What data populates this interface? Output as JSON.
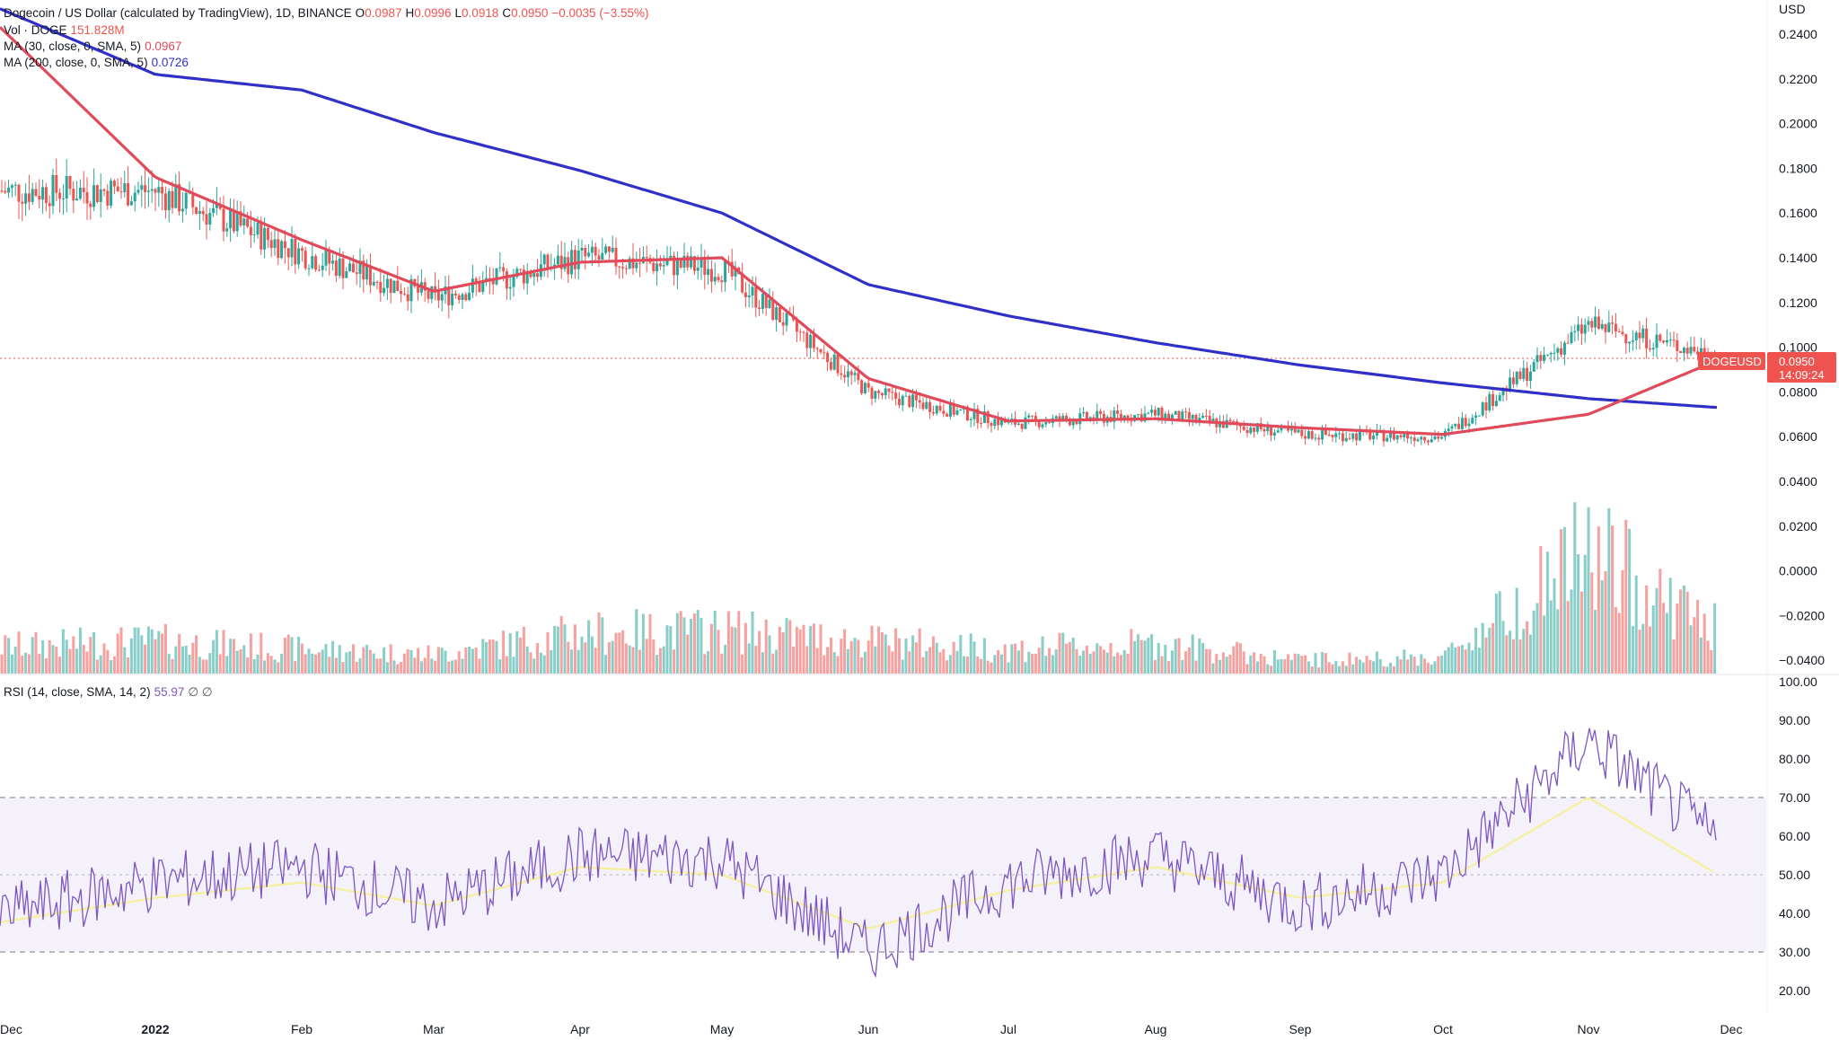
{
  "legend": {
    "main": "Dogecoin / US Dollar (calculated by TradingView), 1D, BINANCE",
    "o_label": "O",
    "o_value": "0.0987",
    "h_label": "H",
    "h_value": "0.0996",
    "l_label": "L",
    "l_value": "0.0918",
    "c_label": "C",
    "c_value": "0.0950",
    "change": "−0.0035 (−3.55%)",
    "vol_label": "Vol · DOGE",
    "vol_value": "151.828M",
    "ma30_label": "MA (30, close, 0, SMA, 5)",
    "ma30_value": "0.0967",
    "ma200_label": "MA (200, close, 0, SMA, 5)",
    "ma200_value": "0.0726",
    "rsi_label": "RSI (14, close, SMA, 14, 2)",
    "rsi_value": "55.97",
    "rsi_extra": "∅ ∅"
  },
  "price_axis": {
    "unit": "USD",
    "ticks": [
      "0.2400",
      "0.2200",
      "0.2000",
      "0.1800",
      "0.1600",
      "0.1400",
      "0.1200",
      "0.1000",
      "0.0800",
      "0.0600",
      "0.0400",
      "0.0200",
      "0.0000",
      "−0.0200",
      "−0.0400"
    ]
  },
  "rsi_axis": {
    "ticks": [
      "100.00",
      "90.00",
      "80.00",
      "70.00",
      "60.00",
      "50.00",
      "40.00",
      "30.00",
      "20.00"
    ]
  },
  "time_axis": {
    "labels": [
      "Dec",
      "2022",
      "Feb",
      "Mar",
      "Apr",
      "May",
      "Jun",
      "Jul",
      "Aug",
      "Sep",
      "Oct",
      "Nov",
      "Dec"
    ]
  },
  "price_tag": {
    "symbol": "DOGEUSD",
    "value": "0.0950",
    "countdown": "14:09:24"
  },
  "colors": {
    "up": "#26a69a",
    "down": "#ef5350",
    "ma30": "#e04a5a",
    "ma200": "#3030c8",
    "rsi": "#7e57c2",
    "rsi_ma": "#f5f0a0",
    "rsi_band": "#ede7f6"
  },
  "chart_data": [
    {
      "type": "line",
      "title": "Dogecoin / US Dollar (calculated by TradingView), 1D, BINANCE",
      "ylabel": "USD",
      "ylim": [
        -0.045,
        0.25
      ],
      "x": [
        "Dec",
        "2022",
        "Feb",
        "Mar",
        "Apr",
        "May",
        "Jun",
        "Jul",
        "Aug",
        "Sep",
        "Oct",
        "Nov",
        "Dec"
      ],
      "series": [
        {
          "name": "DOGEUSD close",
          "values": [
            0.17,
            0.17,
            0.142,
            0.122,
            0.14,
            0.135,
            0.08,
            0.066,
            0.07,
            0.061,
            0.06,
            0.11,
            0.095
          ]
        },
        {
          "name": "MA (30, close, 0, SMA, 5)",
          "values": [
            0.24,
            0.176,
            0.148,
            0.125,
            0.138,
            0.14,
            0.086,
            0.067,
            0.068,
            0.064,
            0.061,
            0.07,
            0.0967
          ]
        },
        {
          "name": "MA (200, close, 0, SMA, 5)",
          "values": [
            0.25,
            0.222,
            0.215,
            0.196,
            0.179,
            0.16,
            0.128,
            0.114,
            0.102,
            0.092,
            0.084,
            0.077,
            0.0726
          ]
        }
      ],
      "last": {
        "open": 0.0987,
        "high": 0.0996,
        "low": 0.0918,
        "close": 0.095
      }
    },
    {
      "type": "bar",
      "title": "Vol · DOGE",
      "x": [
        "Dec",
        "2022",
        "Feb",
        "Mar",
        "Apr",
        "May",
        "Jun",
        "Jul",
        "Aug",
        "Sep",
        "Oct",
        "Nov",
        "Dec"
      ],
      "series": [
        {
          "name": "Vol · DOGE",
          "values": [
            0.2,
            0.24,
            0.18,
            0.14,
            0.3,
            0.32,
            0.24,
            0.18,
            0.22,
            0.1,
            0.12,
            0.9,
            0.26
          ]
        }
      ],
      "last": "151.828M"
    },
    {
      "type": "line",
      "title": "RSI (14, close, SMA, 14, 2)",
      "ylim": [
        15,
        100
      ],
      "bands": [
        30,
        50,
        70
      ],
      "x": [
        "Dec",
        "2022",
        "Feb",
        "Mar",
        "Apr",
        "May",
        "Jun",
        "Jul",
        "Aug",
        "Sep",
        "Oct",
        "Nov",
        "Dec"
      ],
      "series": [
        {
          "name": "RSI",
          "values": [
            40,
            48,
            52,
            42,
            55,
            54,
            30,
            48,
            55,
            42,
            50,
            85,
            56
          ]
        },
        {
          "name": "RSI-based MA",
          "values": [
            38,
            44,
            48,
            42,
            52,
            50,
            36,
            46,
            52,
            44,
            48,
            70,
            48
          ]
        }
      ],
      "last": 55.97
    }
  ]
}
